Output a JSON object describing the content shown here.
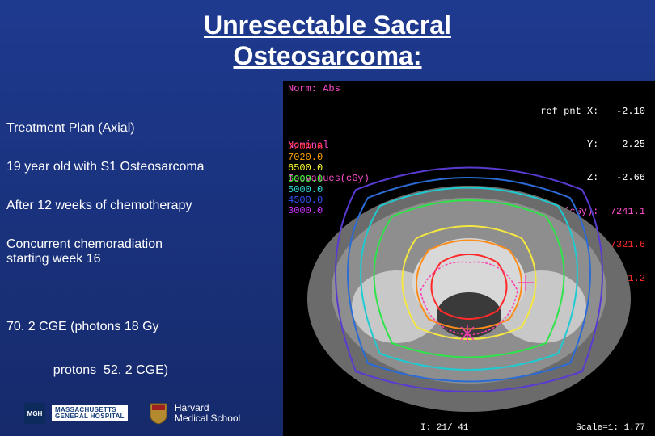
{
  "title_line1": "Unresectable Sacral",
  "title_line2": "Osteosarcoma:",
  "left": {
    "plan": "Treatment Plan (Axial)",
    "patient": "19 year old with S1 Osteosarcoma",
    "chemo": "After 12 weeks of chemotherapy",
    "concurrent_l1": "Concurrent chemoradiation",
    "concurrent_l2": "starting week 16",
    "dose_l1": "70. 2 CGE (photons 18 Gy",
    "dose_l2": "             protons  52. 2 CGE)"
  },
  "footer": {
    "mgh_badge": "MGH",
    "mgh_l1": "MASSACHUSETTS",
    "mgh_l2": "GENERAL HOSPITAL",
    "hms_l1": "Harvard",
    "hms_l2": "Medical School"
  },
  "ct": {
    "norm": "Norm: Abs",
    "ref_pnt": {
      "label": "ref pnt X:",
      "x": "-2.10",
      "y_lbl": "Y:",
      "y": "2.25",
      "z_lbl": "Z:",
      "z": "-2.66"
    },
    "dose_header": "dose(cGy):  7241.1",
    "global_max": "global max(cGy):7321.6",
    "local_max": "local max(cGy):7281.2",
    "nominal_l1": "Nominal",
    "nominal_l2": "Isovalues(cGy)",
    "isovalues": [
      {
        "value": "7200.0",
        "color": "#ff2a2a"
      },
      {
        "value": "7020.0",
        "color": "#ffa500"
      },
      {
        "value": "6500.0",
        "color": "#ffff33"
      },
      {
        "value": "6000.0",
        "color": "#33ff33"
      },
      {
        "value": "5000.0",
        "color": "#33dddd"
      },
      {
        "value": "4500.0",
        "color": "#3355ff"
      },
      {
        "value": "3000.0",
        "color": "#cc33ff"
      }
    ],
    "slice": "I: 21/ 41",
    "scale": "Scale=1:   1.77",
    "contour_colors": {
      "outer1": "#2b6bd6",
      "outer2": "#5a3bd1",
      "mid1": "#1ecbd1",
      "mid2": "#2fe34a",
      "inner_yellow": "#f4e742",
      "inner_orange": "#ff8c1a",
      "inner_red": "#ff2a2a",
      "magenta": "#ff3fb0"
    },
    "cross_mark_color": "#ff3fb0",
    "background": "#000000",
    "ct_gray_light": "#bdbdbd",
    "ct_gray_dark": "#5a5a5a"
  },
  "slide_background": "#1a2a6c"
}
